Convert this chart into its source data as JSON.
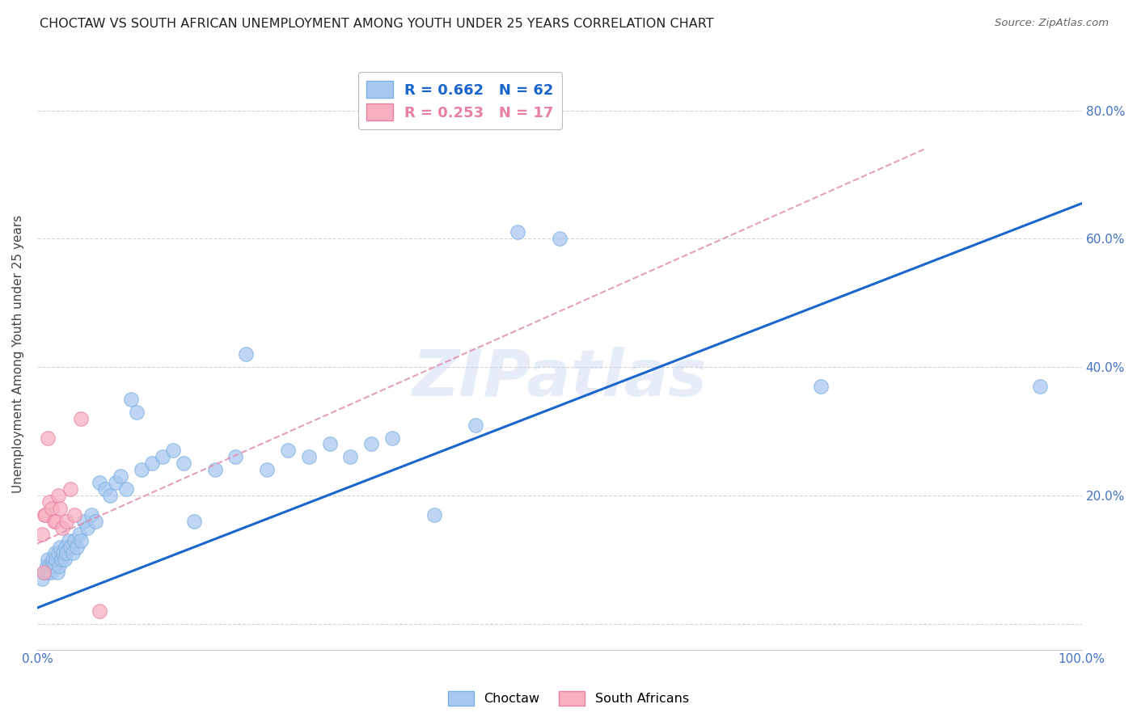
{
  "title": "CHOCTAW VS SOUTH AFRICAN UNEMPLOYMENT AMONG YOUTH UNDER 25 YEARS CORRELATION CHART",
  "source": "Source: ZipAtlas.com",
  "ylabel": "Unemployment Among Youth under 25 years",
  "xlim": [
    0.0,
    1.0
  ],
  "ylim": [
    -0.04,
    0.88
  ],
  "xticks": [
    0.0,
    0.2,
    0.4,
    0.6,
    0.8,
    1.0
  ],
  "xticklabels": [
    "0.0%",
    "",
    "",
    "",
    "",
    "100.0%"
  ],
  "yticks": [
    0.0,
    0.2,
    0.4,
    0.6,
    0.8
  ],
  "yticklabels_right": [
    "",
    "20.0%",
    "40.0%",
    "60.0%",
    "80.0%"
  ],
  "background_color": "#ffffff",
  "grid_color": "#d0d0d0",
  "watermark": "ZIPatlas",
  "choctaw_dot_face": "#a8c8f0",
  "choctaw_dot_edge": "#7ab0e0",
  "sa_dot_face": "#f8b0c0",
  "sa_dot_edge": "#e880a0",
  "choctaw_line_color": "#1a66cc",
  "sa_line_color": "#e090b0",
  "legend_choctaw_face": "#a8c8f0",
  "legend_choctaw_edge": "#7ab0e0",
  "legend_sa_face": "#f8b0c0",
  "legend_sa_edge": "#e880a0",
  "choctaw_R": 0.662,
  "choctaw_N": 62,
  "sa_R": 0.253,
  "sa_N": 17,
  "choctaw_x": [
    0.005,
    0.007,
    0.009,
    0.01,
    0.01,
    0.012,
    0.013,
    0.014,
    0.015,
    0.016,
    0.017,
    0.018,
    0.019,
    0.02,
    0.021,
    0.022,
    0.023,
    0.025,
    0.026,
    0.027,
    0.028,
    0.03,
    0.032,
    0.034,
    0.036,
    0.038,
    0.04,
    0.042,
    0.045,
    0.048,
    0.052,
    0.056,
    0.06,
    0.065,
    0.07,
    0.075,
    0.08,
    0.085,
    0.09,
    0.095,
    0.1,
    0.11,
    0.12,
    0.13,
    0.14,
    0.15,
    0.17,
    0.19,
    0.2,
    0.22,
    0.24,
    0.26,
    0.28,
    0.3,
    0.32,
    0.34,
    0.38,
    0.42,
    0.46,
    0.5,
    0.75,
    0.96
  ],
  "choctaw_y": [
    0.07,
    0.08,
    0.09,
    0.1,
    0.08,
    0.09,
    0.08,
    0.09,
    0.1,
    0.09,
    0.11,
    0.1,
    0.08,
    0.11,
    0.09,
    0.12,
    0.1,
    0.11,
    0.1,
    0.12,
    0.11,
    0.13,
    0.12,
    0.11,
    0.13,
    0.12,
    0.14,
    0.13,
    0.16,
    0.15,
    0.17,
    0.16,
    0.22,
    0.21,
    0.2,
    0.22,
    0.23,
    0.21,
    0.35,
    0.33,
    0.24,
    0.25,
    0.26,
    0.27,
    0.25,
    0.16,
    0.24,
    0.26,
    0.42,
    0.24,
    0.27,
    0.26,
    0.28,
    0.26,
    0.28,
    0.29,
    0.17,
    0.31,
    0.61,
    0.6,
    0.37,
    0.37
  ],
  "sa_x": [
    0.005,
    0.006,
    0.007,
    0.008,
    0.01,
    0.012,
    0.014,
    0.016,
    0.018,
    0.02,
    0.022,
    0.024,
    0.028,
    0.032,
    0.036,
    0.042,
    0.06
  ],
  "sa_y": [
    0.14,
    0.08,
    0.17,
    0.17,
    0.29,
    0.19,
    0.18,
    0.16,
    0.16,
    0.2,
    0.18,
    0.15,
    0.16,
    0.21,
    0.17,
    0.32,
    0.02
  ],
  "choctaw_line_x0": 0.0,
  "choctaw_line_y0": 0.025,
  "choctaw_line_x1": 1.0,
  "choctaw_line_y1": 0.655,
  "sa_line_x0": 0.0,
  "sa_line_y0": 0.125,
  "sa_line_x1": 0.85,
  "sa_line_y1": 0.74
}
